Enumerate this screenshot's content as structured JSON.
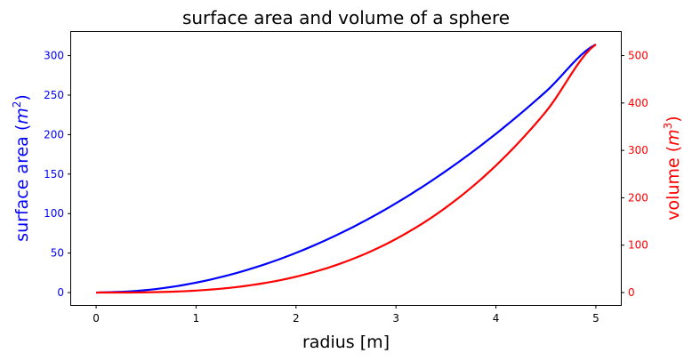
{
  "chart_data": {
    "type": "line",
    "title": "surface area and volume of a sphere",
    "xlabel": "radius [m]",
    "xlim": [
      -0.25,
      5.25
    ],
    "xticks": [
      0,
      1,
      2,
      3,
      4,
      5
    ],
    "y_left": {
      "label": "surface area (m²)",
      "label_main": "surface area (",
      "label_var": "m",
      "label_sup": "2",
      "label_end": ")",
      "ylim": [
        -15.7,
        329.9
      ],
      "ticks": [
        0,
        50,
        100,
        150,
        200,
        250,
        300
      ],
      "color": "#0000ff"
    },
    "y_right": {
      "label": "volume (m³)",
      "label_main": "volume (",
      "label_var": "m",
      "label_sup": "3",
      "label_end": ")",
      "ylim": [
        -26.2,
        549.8
      ],
      "ticks": [
        0,
        100,
        200,
        300,
        400,
        500
      ],
      "color": "#ff0000"
    },
    "x": [
      0,
      0.5,
      1,
      1.5,
      2,
      2.5,
      3,
      3.5,
      4,
      4.5,
      5
    ],
    "series": [
      {
        "axis": "left",
        "color": "#0000ff",
        "values": [
          0,
          3.14,
          12.57,
          28.27,
          50.27,
          78.54,
          113.1,
          153.94,
          201.06,
          254.47,
          314.16
        ]
      },
      {
        "axis": "right",
        "color": "#ff0000",
        "values": [
          0,
          0.52,
          4.19,
          14.14,
          33.51,
          65.45,
          113.1,
          179.59,
          268.08,
          381.7,
          523.6
        ]
      }
    ],
    "grid": false,
    "legend": false
  }
}
